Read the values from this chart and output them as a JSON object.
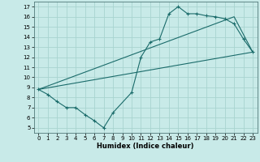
{
  "xlabel": "Humidex (Indice chaleur)",
  "xlim": [
    -0.5,
    23.5
  ],
  "ylim": [
    4.5,
    17.5
  ],
  "xticks": [
    0,
    1,
    2,
    3,
    4,
    5,
    6,
    7,
    8,
    9,
    10,
    11,
    12,
    13,
    14,
    15,
    16,
    17,
    18,
    19,
    20,
    21,
    22,
    23
  ],
  "yticks": [
    5,
    6,
    7,
    8,
    9,
    10,
    11,
    12,
    13,
    14,
    15,
    16,
    17
  ],
  "background_color": "#c8eae8",
  "grid_color": "#a8d4d0",
  "line_color": "#1a6b6a",
  "line1_x": [
    0,
    1,
    2,
    3,
    4,
    5,
    6,
    7,
    8,
    10,
    11,
    12,
    13,
    14,
    15,
    16,
    17,
    18,
    19,
    20,
    21,
    22,
    23
  ],
  "line1_y": [
    8.8,
    8.3,
    7.6,
    7.0,
    7.0,
    6.3,
    5.7,
    5.0,
    6.5,
    8.5,
    12.0,
    13.5,
    13.8,
    16.3,
    17.0,
    16.3,
    16.3,
    16.1,
    16.0,
    15.8,
    15.3,
    13.8,
    12.5
  ],
  "line2_x": [
    0,
    23
  ],
  "line2_y": [
    8.8,
    12.5
  ],
  "line3_x": [
    0,
    21,
    23
  ],
  "line3_y": [
    8.8,
    16.0,
    12.5
  ]
}
